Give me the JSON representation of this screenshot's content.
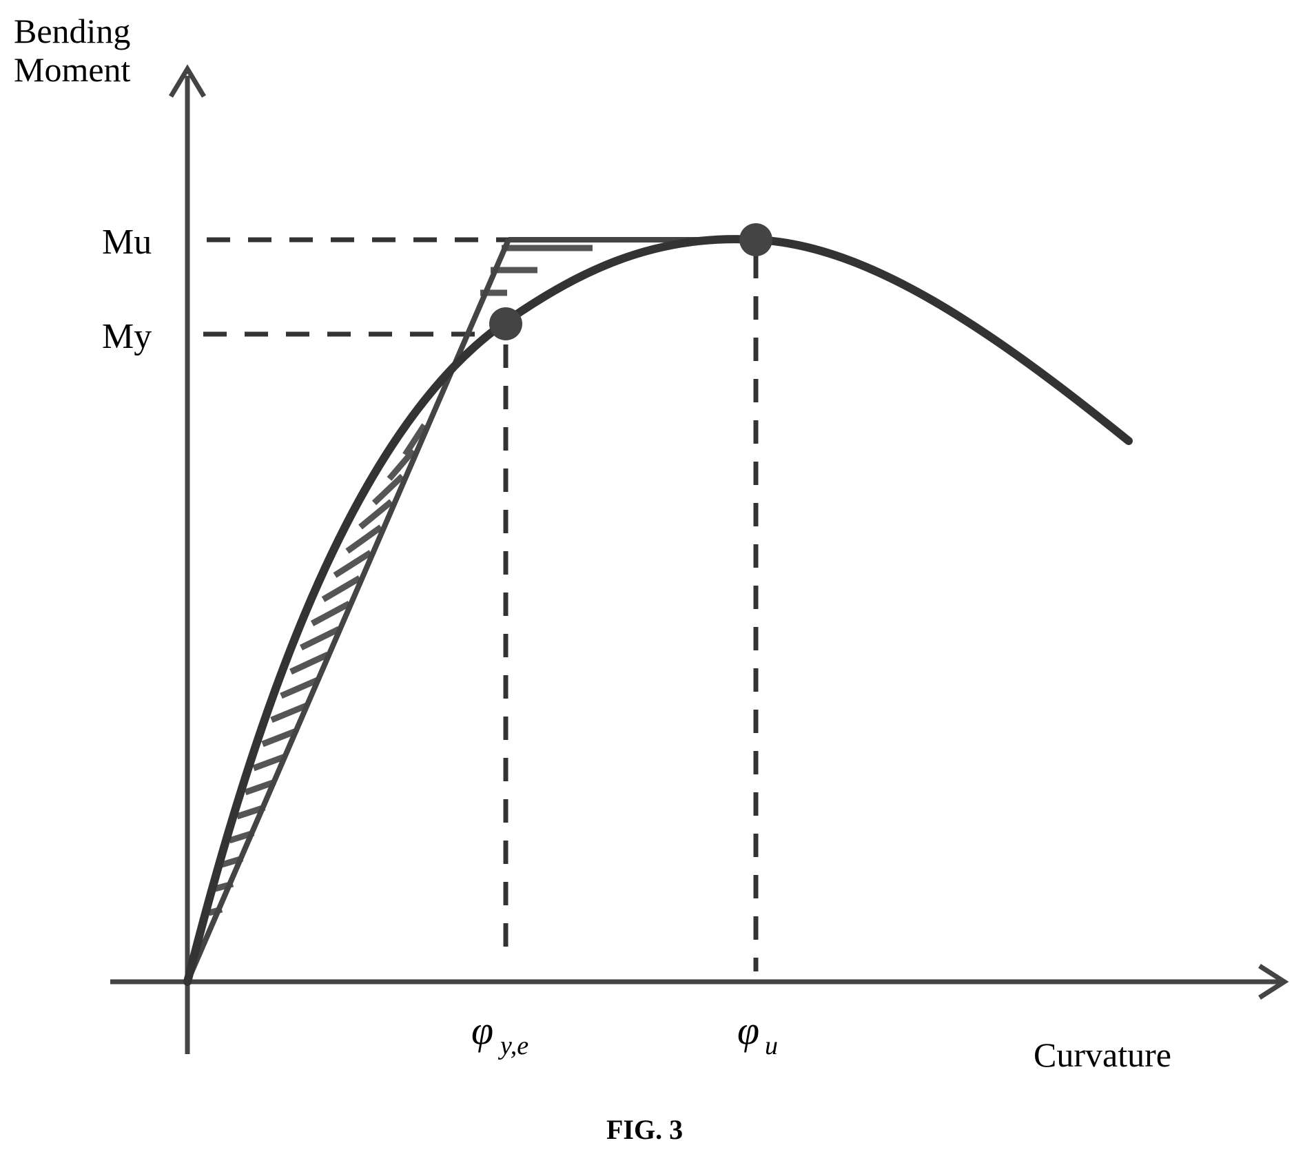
{
  "figure": {
    "y_axis_title_line1": "Bending",
    "y_axis_title_line2": "Moment",
    "x_axis_title": "Curvature",
    "caption": "FIG. 3",
    "labels": {
      "mu": "Mu",
      "my": "My",
      "phi_y_symbol": "φ",
      "phi_y_subscript": "y,e",
      "phi_u_symbol": "φ",
      "phi_u_subscript": "u"
    },
    "colors": {
      "ink": "#333333",
      "background": "#ffffff"
    }
  }
}
